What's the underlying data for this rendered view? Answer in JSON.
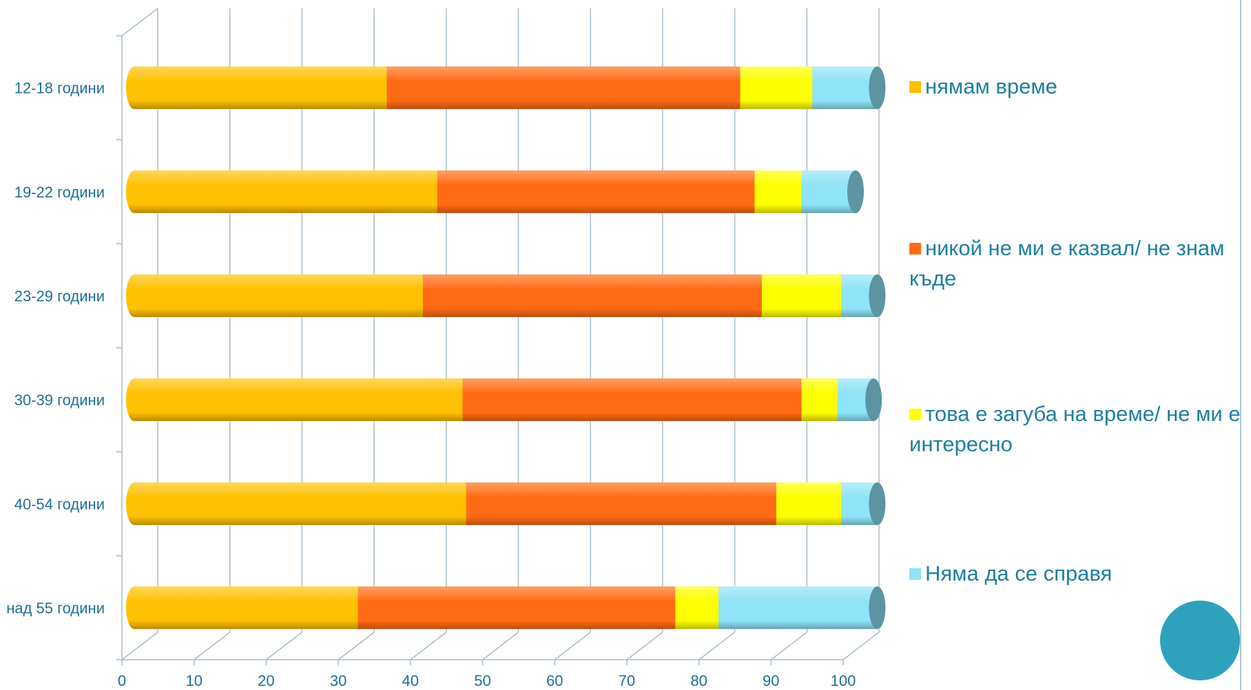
{
  "chart_data": {
    "type": "bar",
    "orientation": "horizontal",
    "stacked": true,
    "style": "3d-cylinder",
    "categories": [
      "12-18 години",
      "19-22 години",
      "23-29 години",
      "30-39 години",
      "40-54 години",
      "над 55 години"
    ],
    "series": [
      {
        "name": "нямам време",
        "color": "#fec000",
        "values": [
          35,
          42,
          40,
          45.5,
          46,
          31
        ]
      },
      {
        "name": "никой не ми е казвал/ не знам къде",
        "color": "#ff6b14",
        "values": [
          49,
          44,
          47,
          47,
          43,
          44
        ]
      },
      {
        "name": "това е загуба на време/ не ми е интересно",
        "color": "#ffff00",
        "values": [
          10,
          6.5,
          11,
          5,
          9,
          6
        ]
      },
      {
        "name": "Няма да се справя",
        "color": "#8fe4f8",
        "values": [
          9,
          7.5,
          5,
          5,
          5,
          22
        ]
      }
    ],
    "xlim": [
      0,
      100
    ],
    "xticks": [
      "0",
      "10",
      "20",
      "30",
      "40",
      "50",
      "60",
      "70",
      "80",
      "90",
      "100"
    ],
    "grid": true,
    "legend_position": "right"
  },
  "colors": {
    "legend_text": "#1f7fa0",
    "axis_labels": "#1f6f95",
    "grid": "#a7bccb",
    "decor_circle": "#2ea2bc"
  }
}
